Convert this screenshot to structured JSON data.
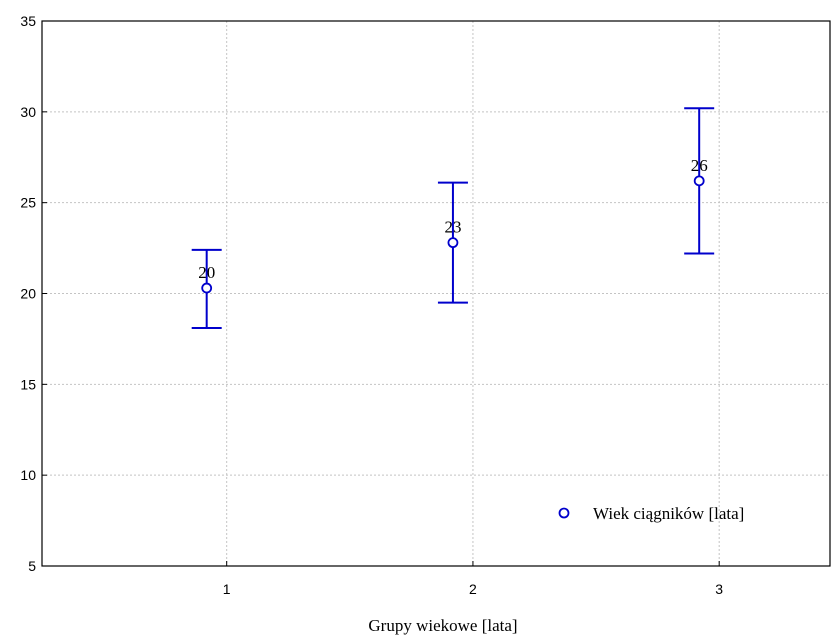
{
  "chart_data": {
    "type": "scatter",
    "xlabel": "Grupy wiekowe [lata]",
    "ylabel": "",
    "ylim": [
      5,
      35
    ],
    "yticks": [
      "5",
      "10",
      "15",
      "20",
      "25",
      "30",
      "35"
    ],
    "xlim": [
      0.25,
      3.45
    ],
    "xticks": [
      "1",
      "2",
      "3"
    ],
    "grid": true,
    "legend_position": "bottom-right",
    "series": [
      {
        "name": "Wiek ciągników [lata]",
        "color": "#0000cc",
        "points": [
          {
            "x": 1,
            "y": 20.3,
            "low": 18.1,
            "high": 22.4,
            "label": "20"
          },
          {
            "x": 2,
            "y": 22.8,
            "low": 19.5,
            "high": 26.1,
            "label": "23"
          },
          {
            "x": 3,
            "y": 26.2,
            "low": 22.2,
            "high": 30.2,
            "label": "26"
          }
        ]
      }
    ]
  }
}
